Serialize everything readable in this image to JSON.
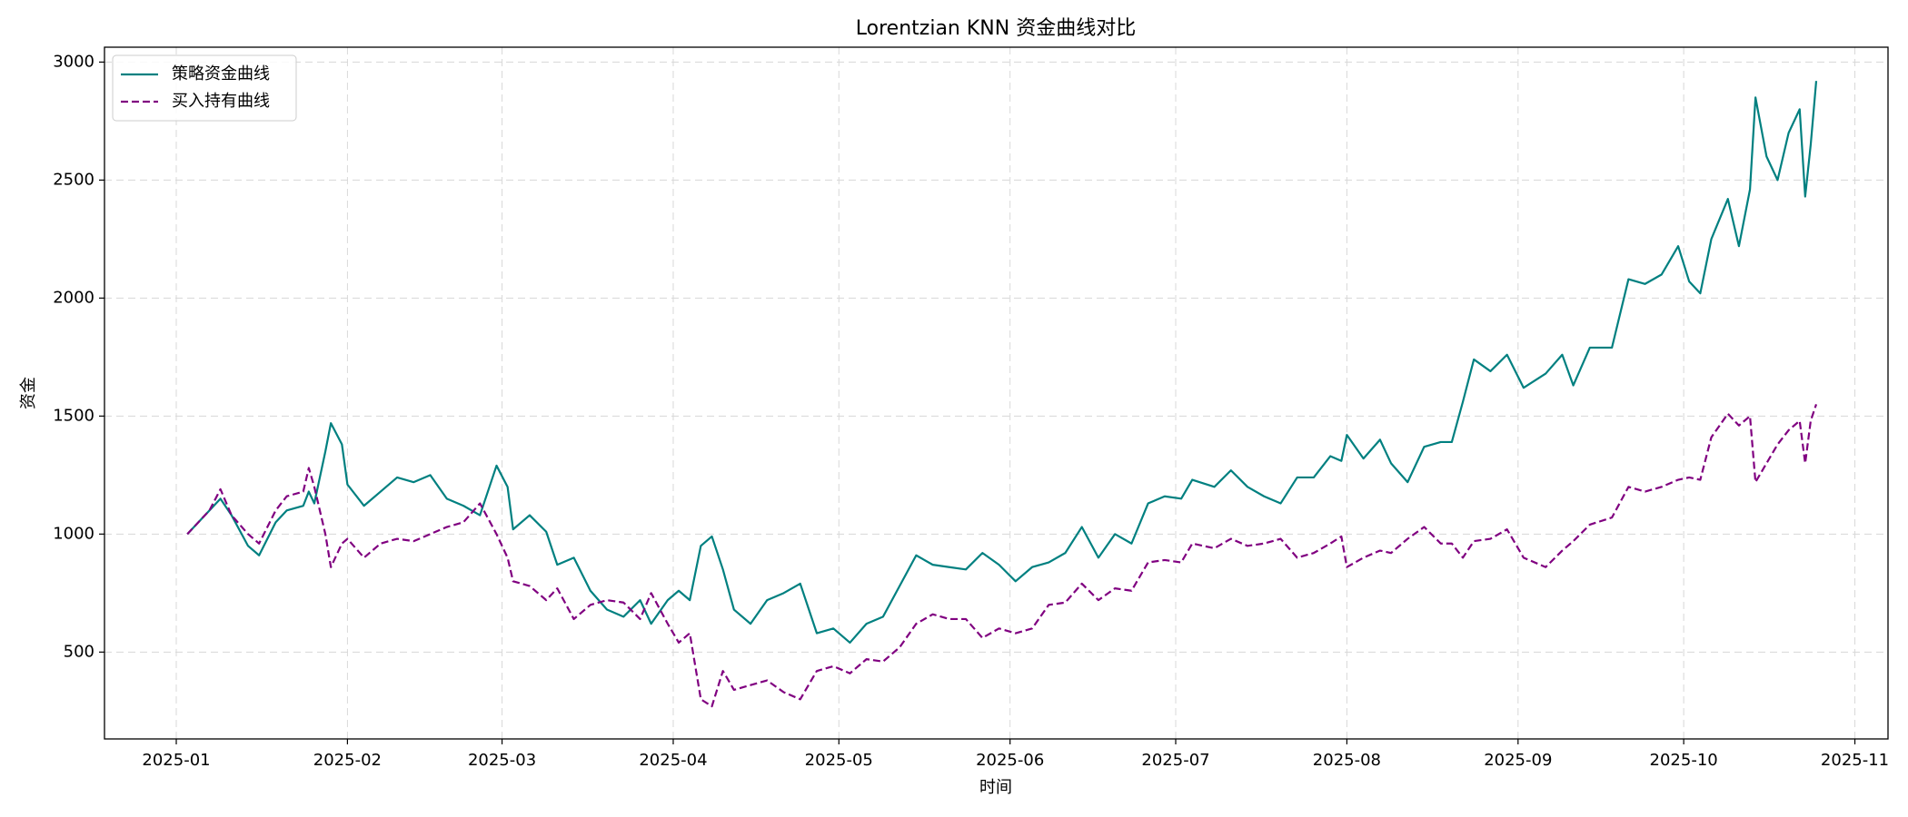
{
  "chart_data": {
    "type": "line",
    "title": "Lorentzian KNN 资金曲线对比",
    "xlabel": "时间",
    "ylabel": "资金",
    "x": [
      "2025-01-03",
      "2025-01-07",
      "2025-01-09",
      "2025-01-11",
      "2025-01-14",
      "2025-01-16",
      "2025-01-19",
      "2025-01-21",
      "2025-01-24",
      "2025-01-25",
      "2025-01-26",
      "2025-01-28",
      "2025-01-29",
      "2025-01-31",
      "2025-02-01",
      "2025-02-04",
      "2025-02-07",
      "2025-02-10",
      "2025-02-13",
      "2025-02-16",
      "2025-02-19",
      "2025-02-22",
      "2025-02-25",
      "2025-02-28",
      "2025-03-02",
      "2025-03-03",
      "2025-03-06",
      "2025-03-09",
      "2025-03-11",
      "2025-03-14",
      "2025-03-17",
      "2025-03-20",
      "2025-03-23",
      "2025-03-26",
      "2025-03-28",
      "2025-03-31",
      "2025-04-02",
      "2025-04-04",
      "2025-04-06",
      "2025-04-08",
      "2025-04-10",
      "2025-04-12",
      "2025-04-15",
      "2025-04-18",
      "2025-04-21",
      "2025-04-24",
      "2025-04-27",
      "2025-04-30",
      "2025-05-03",
      "2025-05-06",
      "2025-05-09",
      "2025-05-12",
      "2025-05-15",
      "2025-05-18",
      "2025-05-21",
      "2025-05-24",
      "2025-05-27",
      "2025-05-30",
      "2025-06-02",
      "2025-06-05",
      "2025-06-08",
      "2025-06-11",
      "2025-06-14",
      "2025-06-17",
      "2025-06-20",
      "2025-06-23",
      "2025-06-26",
      "2025-06-29",
      "2025-07-02",
      "2025-07-04",
      "2025-07-08",
      "2025-07-11",
      "2025-07-14",
      "2025-07-17",
      "2025-07-20",
      "2025-07-23",
      "2025-07-26",
      "2025-07-29",
      "2025-07-31",
      "2025-08-01",
      "2025-08-04",
      "2025-08-07",
      "2025-08-09",
      "2025-08-12",
      "2025-08-15",
      "2025-08-18",
      "2025-08-20",
      "2025-08-22",
      "2025-08-24",
      "2025-08-27",
      "2025-08-30",
      "2025-09-02",
      "2025-09-06",
      "2025-09-09",
      "2025-09-11",
      "2025-09-14",
      "2025-09-18",
      "2025-09-21",
      "2025-09-24",
      "2025-09-27",
      "2025-09-30",
      "2025-10-02",
      "2025-10-04",
      "2025-10-06",
      "2025-10-09",
      "2025-10-11",
      "2025-10-13",
      "2025-10-14",
      "2025-10-16",
      "2025-10-18",
      "2025-10-20",
      "2025-10-22",
      "2025-10-23",
      "2025-10-24",
      "2025-10-25"
    ],
    "series": [
      {
        "name": "策略资金曲线",
        "color": "#008080",
        "style": "solid",
        "values": [
          1000,
          1100,
          1150,
          1080,
          950,
          910,
          1050,
          1100,
          1120,
          1180,
          1130,
          1350,
          1470,
          1380,
          1210,
          1120,
          1180,
          1240,
          1220,
          1250,
          1150,
          1120,
          1080,
          1290,
          1200,
          1020,
          1080,
          1010,
          870,
          900,
          760,
          680,
          650,
          720,
          620,
          720,
          760,
          720,
          950,
          990,
          850,
          680,
          620,
          720,
          750,
          790,
          580,
          600,
          540,
          620,
          650,
          780,
          910,
          870,
          860,
          850,
          920,
          870,
          800,
          860,
          880,
          920,
          1030,
          900,
          1000,
          960,
          1130,
          1160,
          1150,
          1230,
          1200,
          1270,
          1200,
          1160,
          1130,
          1240,
          1240,
          1330,
          1310,
          1420,
          1320,
          1400,
          1300,
          1220,
          1370,
          1390,
          1390,
          1560,
          1740,
          1690,
          1760,
          1620,
          1680,
          1760,
          1630,
          1790,
          1790,
          2080,
          2060,
          2100,
          2220,
          2070,
          2020,
          2250,
          2420,
          2220,
          2460,
          2850,
          2600,
          2500,
          2700,
          2800,
          2430,
          2650,
          2920
        ]
      },
      {
        "name": "买入持有曲线",
        "color": "#800080",
        "style": "dashed",
        "values": [
          1000,
          1100,
          1190,
          1080,
          1000,
          960,
          1100,
          1160,
          1180,
          1280,
          1200,
          1000,
          860,
          960,
          980,
          900,
          960,
          980,
          970,
          1000,
          1030,
          1050,
          1130,
          1000,
          900,
          800,
          780,
          720,
          770,
          640,
          700,
          720,
          710,
          640,
          750,
          620,
          540,
          580,
          300,
          270,
          420,
          340,
          360,
          380,
          330,
          300,
          420,
          440,
          410,
          470,
          460,
          520,
          620,
          660,
          640,
          640,
          560,
          600,
          580,
          600,
          700,
          710,
          790,
          720,
          770,
          760,
          880,
          890,
          880,
          960,
          940,
          980,
          950,
          960,
          980,
          900,
          920,
          960,
          990,
          860,
          900,
          930,
          920,
          980,
          1030,
          960,
          960,
          900,
          970,
          980,
          1020,
          900,
          860,
          930,
          970,
          1040,
          1070,
          1200,
          1180,
          1200,
          1230,
          1240,
          1230,
          1410,
          1510,
          1460,
          1500,
          1220,
          1300,
          1380,
          1440,
          1480,
          1300,
          1480,
          1550
        ]
      }
    ],
    "xlim": [
      "2024-12-19",
      "2025-11-07"
    ],
    "xticks": [
      "2025-01",
      "2025-02",
      "2025-03",
      "2025-04",
      "2025-05",
      "2025-06",
      "2025-07",
      "2025-08",
      "2025-09",
      "2025-10",
      "2025-11"
    ],
    "ylim": [
      132,
      3063
    ],
    "yticks": [
      500,
      1000,
      1500,
      2000,
      2500,
      3000
    ],
    "grid": true,
    "legend": "upper left"
  }
}
